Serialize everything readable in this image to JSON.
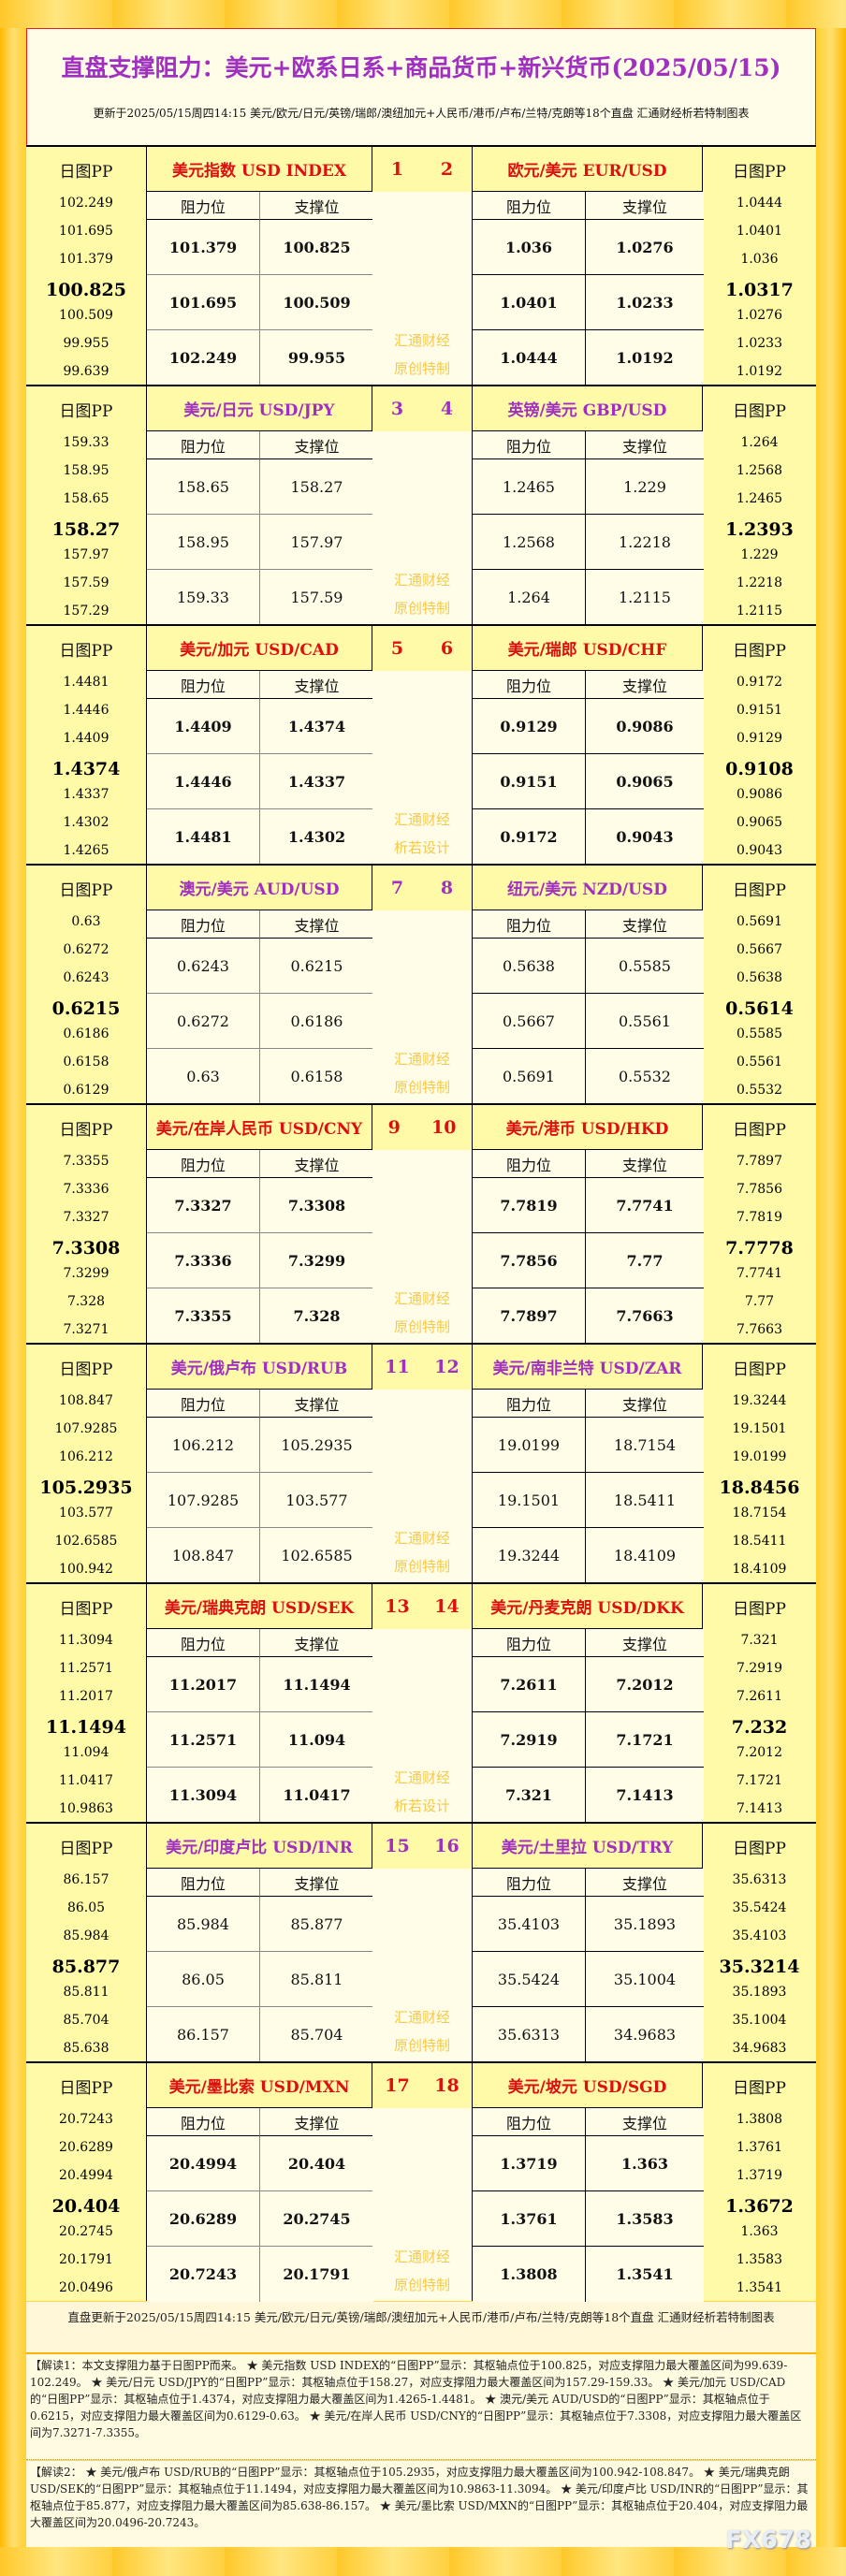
{
  "title": "直盘支撑阻力：美元+欧系日系+商品货币+新兴货币(2025/05/15)",
  "subtitle": "更新于2025/05/15周四14:15 美元/欧元/日元/英镑/瑞郎/澳纽加元+人民币/港币/卢布/兰特/克朗等18个直盘 汇通财经析若特制图表",
  "labels": {
    "pp": "日图PP",
    "resistance": "阻力位",
    "support": "支撑位"
  },
  "colors": {
    "odd_title": "#dd1010",
    "even_title": "#a030c0",
    "watermark": "#f5c94a",
    "gold": "#ffd84a"
  },
  "blocks": [
    {
      "nums": [
        "1",
        "2"
      ],
      "watermark": [
        "汇通财经",
        "原创特制"
      ],
      "left": {
        "name": "美元指数 USD INDEX",
        "pp": [
          "102.249",
          "101.695",
          "101.379",
          "100.825",
          "100.509",
          "99.955",
          "99.639"
        ],
        "res": [
          "101.379",
          "101.695",
          "102.249"
        ],
        "sup": [
          "100.825",
          "100.509",
          "99.955"
        ]
      },
      "right": {
        "name": "欧元/美元 EUR/USD",
        "pp": [
          "1.0444",
          "1.0401",
          "1.036",
          "1.0317",
          "1.0276",
          "1.0233",
          "1.0192"
        ],
        "res": [
          "1.036",
          "1.0401",
          "1.0444"
        ],
        "sup": [
          "1.0276",
          "1.0233",
          "1.0192"
        ]
      }
    },
    {
      "nums": [
        "3",
        "4"
      ],
      "watermark": [
        "汇通财经",
        "原创特制"
      ],
      "left": {
        "name": "美元/日元 USD/JPY",
        "pp": [
          "159.33",
          "158.95",
          "158.65",
          "158.27",
          "157.97",
          "157.59",
          "157.29"
        ],
        "res": [
          "158.65",
          "158.95",
          "159.33"
        ],
        "sup": [
          "158.27",
          "157.97",
          "157.59"
        ]
      },
      "right": {
        "name": "英镑/美元 GBP/USD",
        "pp": [
          "1.264",
          "1.2568",
          "1.2465",
          "1.2393",
          "1.229",
          "1.2218",
          "1.2115"
        ],
        "res": [
          "1.2465",
          "1.2568",
          "1.264"
        ],
        "sup": [
          "1.229",
          "1.2218",
          "1.2115"
        ]
      }
    },
    {
      "nums": [
        "5",
        "6"
      ],
      "watermark": [
        "汇通财经",
        "析若设计"
      ],
      "left": {
        "name": "美元/加元 USD/CAD",
        "pp": [
          "1.4481",
          "1.4446",
          "1.4409",
          "1.4374",
          "1.4337",
          "1.4302",
          "1.4265"
        ],
        "res": [
          "1.4409",
          "1.4446",
          "1.4481"
        ],
        "sup": [
          "1.4374",
          "1.4337",
          "1.4302"
        ]
      },
      "right": {
        "name": "美元/瑞郎 USD/CHF",
        "pp": [
          "0.9172",
          "0.9151",
          "0.9129",
          "0.9108",
          "0.9086",
          "0.9065",
          "0.9043"
        ],
        "res": [
          "0.9129",
          "0.9151",
          "0.9172"
        ],
        "sup": [
          "0.9086",
          "0.9065",
          "0.9043"
        ]
      }
    },
    {
      "nums": [
        "7",
        "8"
      ],
      "watermark": [
        "汇通财经",
        "原创特制"
      ],
      "left": {
        "name": "澳元/美元 AUD/USD",
        "pp": [
          "0.63",
          "0.6272",
          "0.6243",
          "0.6215",
          "0.6186",
          "0.6158",
          "0.6129"
        ],
        "res": [
          "0.6243",
          "0.6272",
          "0.63"
        ],
        "sup": [
          "0.6215",
          "0.6186",
          "0.6158"
        ]
      },
      "right": {
        "name": "纽元/美元 NZD/USD",
        "pp": [
          "0.5691",
          "0.5667",
          "0.5638",
          "0.5614",
          "0.5585",
          "0.5561",
          "0.5532"
        ],
        "res": [
          "0.5638",
          "0.5667",
          "0.5691"
        ],
        "sup": [
          "0.5585",
          "0.5561",
          "0.5532"
        ]
      }
    },
    {
      "nums": [
        "9",
        "10"
      ],
      "watermark": [
        "汇通财经",
        "原创特制"
      ],
      "left": {
        "name": "美元/在岸人民币 USD/CNY",
        "pp": [
          "7.3355",
          "7.3336",
          "7.3327",
          "7.3308",
          "7.3299",
          "7.328",
          "7.3271"
        ],
        "res": [
          "7.3327",
          "7.3336",
          "7.3355"
        ],
        "sup": [
          "7.3308",
          "7.3299",
          "7.328"
        ]
      },
      "right": {
        "name": "美元/港币 USD/HKD",
        "pp": [
          "7.7897",
          "7.7856",
          "7.7819",
          "7.7778",
          "7.7741",
          "7.77",
          "7.7663"
        ],
        "res": [
          "7.7819",
          "7.7856",
          "7.7897"
        ],
        "sup": [
          "7.7741",
          "7.77",
          "7.7663"
        ]
      }
    },
    {
      "nums": [
        "11",
        "12"
      ],
      "watermark": [
        "汇通财经",
        "原创特制"
      ],
      "left": {
        "name": "美元/俄卢布 USD/RUB",
        "pp": [
          "108.847",
          "107.9285",
          "106.212",
          "105.2935",
          "103.577",
          "102.6585",
          "100.942"
        ],
        "res": [
          "106.212",
          "107.9285",
          "108.847"
        ],
        "sup": [
          "105.2935",
          "103.577",
          "102.6585"
        ]
      },
      "right": {
        "name": "美元/南非兰特 USD/ZAR",
        "pp": [
          "19.3244",
          "19.1501",
          "19.0199",
          "18.8456",
          "18.7154",
          "18.5411",
          "18.4109"
        ],
        "res": [
          "19.0199",
          "19.1501",
          "19.3244"
        ],
        "sup": [
          "18.7154",
          "18.5411",
          "18.4109"
        ]
      }
    },
    {
      "nums": [
        "13",
        "14"
      ],
      "watermark": [
        "汇通财经",
        "析若设计"
      ],
      "left": {
        "name": "美元/瑞典克朗 USD/SEK",
        "pp": [
          "11.3094",
          "11.2571",
          "11.2017",
          "11.1494",
          "11.094",
          "11.0417",
          "10.9863"
        ],
        "res": [
          "11.2017",
          "11.2571",
          "11.3094"
        ],
        "sup": [
          "11.1494",
          "11.094",
          "11.0417"
        ]
      },
      "right": {
        "name": "美元/丹麦克朗 USD/DKK",
        "pp": [
          "7.321",
          "7.2919",
          "7.2611",
          "7.232",
          "7.2012",
          "7.1721",
          "7.1413"
        ],
        "res": [
          "7.2611",
          "7.2919",
          "7.321"
        ],
        "sup": [
          "7.2012",
          "7.1721",
          "7.1413"
        ]
      }
    },
    {
      "nums": [
        "15",
        "16"
      ],
      "watermark": [
        "汇通财经",
        "原创特制"
      ],
      "left": {
        "name": "美元/印度卢比 USD/INR",
        "pp": [
          "86.157",
          "86.05",
          "85.984",
          "85.877",
          "85.811",
          "85.704",
          "85.638"
        ],
        "res": [
          "85.984",
          "86.05",
          "86.157"
        ],
        "sup": [
          "85.877",
          "85.811",
          "85.704"
        ]
      },
      "right": {
        "name": "美元/土里拉 USD/TRY",
        "pp": [
          "35.6313",
          "35.5424",
          "35.4103",
          "35.3214",
          "35.1893",
          "35.1004",
          "34.9683"
        ],
        "res": [
          "35.4103",
          "35.5424",
          "35.6313"
        ],
        "sup": [
          "35.1893",
          "35.1004",
          "34.9683"
        ]
      }
    },
    {
      "nums": [
        "17",
        "18"
      ],
      "watermark": [
        "汇通财经",
        "原创特制"
      ],
      "left": {
        "name": "美元/墨比索 USD/MXN",
        "pp": [
          "20.7243",
          "20.6289",
          "20.4994",
          "20.404",
          "20.2745",
          "20.1791",
          "20.0496"
        ],
        "res": [
          "20.4994",
          "20.6289",
          "20.7243"
        ],
        "sup": [
          "20.404",
          "20.2745",
          "20.1791"
        ]
      },
      "right": {
        "name": "美元/坡元 USD/SGD",
        "pp": [
          "1.3808",
          "1.3761",
          "1.3719",
          "1.3672",
          "1.363",
          "1.3583",
          "1.3541"
        ],
        "res": [
          "1.3719",
          "1.3761",
          "1.3808"
        ],
        "sup": [
          "1.363",
          "1.3583",
          "1.3541"
        ]
      }
    }
  ],
  "footer": "直盘更新于2025/05/15周四14:15 美元/欧元/日元/英镑/瑞郎/澳纽加元+人民币/港币/卢布/兰特/克朗等18个直盘 汇通财经析若特制图表",
  "note1": "【解读1：本文支撑阻力基于日图PP而来。 ★ 美元指数 USD INDEX的“日图PP”显示：其枢轴点位于100.825，对应支撑阻力最大覆盖区间为99.639-102.249。 ★ 美元/日元 USD/JPY的“日图PP”显示：其枢轴点位于158.27，对应支撑阻力最大覆盖区间为157.29-159.33。 ★ 美元/加元 USD/CAD的“日图PP”显示：其枢轴点位于1.4374，对应支撑阻力最大覆盖区间为1.4265-1.4481。 ★ 澳元/美元 AUD/USD的“日图PP”显示：其枢轴点位于0.6215，对应支撑阻力最大覆盖区间为0.6129-0.63。 ★ 美元/在岸人民币 USD/CNY的“日图PP”显示：其枢轴点位于7.3308，对应支撑阻力最大覆盖区间为7.3271-7.3355。",
  "note2": "【解读2： ★ 美元/俄卢布 USD/RUB的“日图PP”显示：其枢轴点位于105.2935，对应支撑阻力最大覆盖区间为100.942-108.847。 ★ 美元/瑞典克朗 USD/SEK的“日图PP”显示：其枢轴点位于11.1494，对应支撑阻力最大覆盖区间为10.9863-11.3094。 ★ 美元/印度卢比 USD/INR的“日图PP”显示：其枢轴点位于85.877，对应支撑阻力最大覆盖区间为85.638-86.157。 ★ 美元/墨比索 USD/MXN的“日图PP”显示：其枢轴点位于20.404，对应支撑阻力最大覆盖区间为20.0496-20.7243。",
  "watermark_logo": "FX678"
}
